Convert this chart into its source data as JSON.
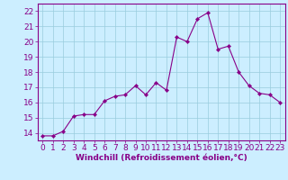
{
  "x": [
    0,
    1,
    2,
    3,
    4,
    5,
    6,
    7,
    8,
    9,
    10,
    11,
    12,
    13,
    14,
    15,
    16,
    17,
    18,
    19,
    20,
    21,
    22,
    23
  ],
  "y": [
    13.8,
    13.8,
    14.1,
    15.1,
    15.2,
    15.2,
    16.1,
    16.4,
    16.5,
    17.1,
    16.5,
    17.3,
    16.8,
    20.3,
    20.0,
    21.5,
    21.9,
    19.5,
    19.7,
    18.0,
    17.1,
    16.6,
    16.5,
    16.0
  ],
  "line_color": "#880088",
  "marker_color": "#880088",
  "bg_color": "#cceeff",
  "grid_color": "#99ccdd",
  "border_color": "#880088",
  "xlabel": "Windchill (Refroidissement éolien,°C)",
  "xlim": [
    -0.5,
    23.5
  ],
  "ylim": [
    13.5,
    22.5
  ],
  "yticks": [
    14,
    15,
    16,
    17,
    18,
    19,
    20,
    21,
    22
  ],
  "xticks": [
    0,
    1,
    2,
    3,
    4,
    5,
    6,
    7,
    8,
    9,
    10,
    11,
    12,
    13,
    14,
    15,
    16,
    17,
    18,
    19,
    20,
    21,
    22,
    23
  ],
  "xlabel_fontsize": 6.5,
  "tick_fontsize": 6.5
}
